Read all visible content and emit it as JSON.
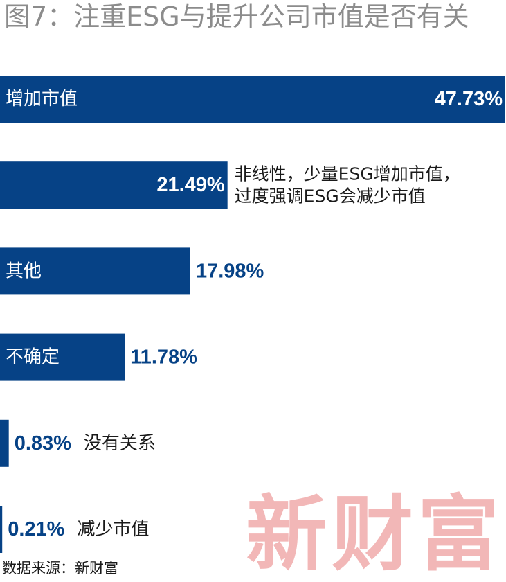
{
  "title": "图7：注重ESG与提升公司市值是否有关",
  "source": "数据来源：新财富",
  "watermark": "新财富",
  "colors": {
    "bar": "#064286",
    "title": "#8c8c8c",
    "watermark": "#f2b7b7"
  },
  "chart_data": {
    "type": "bar",
    "orientation": "horizontal",
    "unit": "%",
    "title": "图7：注重ESG与提升公司市值是否有关",
    "xlim": [
      0,
      47.73
    ],
    "grid": false,
    "legend": "none",
    "categories": [
      "增加市值",
      "",
      "其他",
      "不确定",
      "没有关系",
      "减少市值"
    ],
    "values": [
      47.73,
      21.49,
      17.98,
      11.78,
      0.83,
      0.21
    ],
    "value_labels": [
      "47.73%",
      "21.49%",
      "17.98%",
      "11.78%",
      "0.83%",
      "0.21%"
    ],
    "annotations": [
      "",
      "非线性，少量ESG增加市值，\n过度强调ESG会减少市值",
      "",
      "",
      "",
      ""
    ]
  }
}
